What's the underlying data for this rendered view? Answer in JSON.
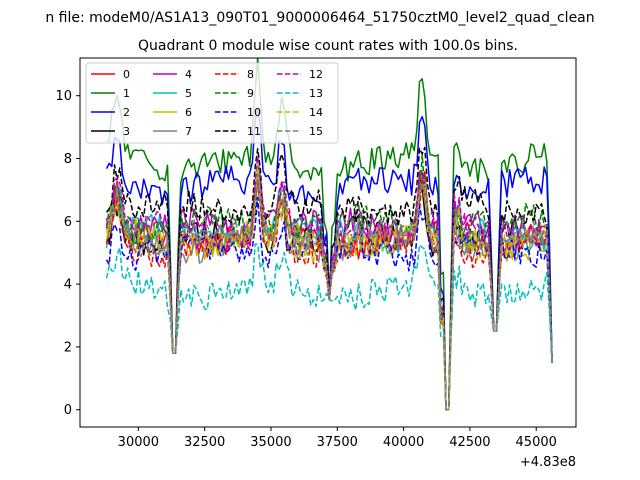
{
  "figure": {
    "suptitle": "n file: modeM0/AS1A13_090T01_9000006464_51750cztM0_level2_quad_clean",
    "title": "Quadrant 0 module wise count rates with 100.0s bins.",
    "x_offset_label": "+4.83e8"
  },
  "chart_data": {
    "type": "line",
    "title": "Quadrant 0 module wise count rates with 100.0s bins.",
    "xlabel": "",
    "ylabel": "",
    "xlim": [
      27800,
      46500
    ],
    "ylim": [
      -0.55,
      11.2
    ],
    "x_offset": 483000000,
    "xticks": [
      30000,
      32500,
      35000,
      37500,
      40000,
      42500,
      45000
    ],
    "xtick_labels": [
      "30000",
      "32500",
      "35000",
      "37500",
      "40000",
      "42500",
      "45000"
    ],
    "yticks": [
      0,
      2,
      4,
      6,
      8,
      10
    ],
    "ytick_labels": [
      "0",
      "2",
      "4",
      "6",
      "8",
      "10"
    ],
    "x_start": 28800,
    "x_end": 45600,
    "bin_seconds": 100,
    "gaps": [
      [
        31300,
        31400,
        1.8
      ],
      [
        37150,
        37250,
        3.5
      ],
      [
        41550,
        41700,
        0.0
      ],
      [
        43400,
        43500,
        2.5
      ],
      [
        45600,
        45600,
        1.5
      ]
    ],
    "features": [
      {
        "x": 29200,
        "w": 250,
        "a": 1.4
      },
      {
        "x": 34500,
        "w": 150,
        "a": 2.2
      },
      {
        "x": 35400,
        "w": 200,
        "a": 1.3
      },
      {
        "x": 40700,
        "w": 200,
        "a": 2.0
      },
      {
        "x": 42000,
        "w": 200,
        "a": 0.8
      }
    ],
    "legend_position": "upper-left",
    "series": [
      {
        "name": "0",
        "color": "#ff0000",
        "dash": "solid",
        "base": 5.5
      },
      {
        "name": "1",
        "color": "#008000",
        "dash": "solid",
        "base": 7.9
      },
      {
        "name": "2",
        "color": "#0000ff",
        "dash": "solid",
        "base": 7.1
      },
      {
        "name": "3",
        "color": "#000000",
        "dash": "solid",
        "base": 5.5
      },
      {
        "name": "4",
        "color": "#bf00bf",
        "dash": "solid",
        "base": 5.8
      },
      {
        "name": "5",
        "color": "#00bfbf",
        "dash": "solid",
        "base": 5.6
      },
      {
        "name": "6",
        "color": "#bfbf00",
        "dash": "solid",
        "base": 5.4
      },
      {
        "name": "7",
        "color": "#808080",
        "dash": "solid",
        "base": 5.3
      },
      {
        "name": "8",
        "color": "#ff0000",
        "dash": "dashed",
        "base": 5.2
      },
      {
        "name": "9",
        "color": "#008000",
        "dash": "dashed",
        "base": 5.9
      },
      {
        "name": "10",
        "color": "#0000ff",
        "dash": "dashed",
        "base": 5.0
      },
      {
        "name": "11",
        "color": "#000000",
        "dash": "dashed",
        "base": 6.4
      },
      {
        "name": "12",
        "color": "#bf00bf",
        "dash": "dashed",
        "base": 5.7
      },
      {
        "name": "13",
        "color": "#00bfbf",
        "dash": "dashed",
        "base": 3.8
      },
      {
        "name": "14",
        "color": "#bfbf00",
        "dash": "dashed",
        "base": 5.3
      },
      {
        "name": "15",
        "color": "#808080",
        "dash": "dashed",
        "base": 5.5
      }
    ]
  }
}
